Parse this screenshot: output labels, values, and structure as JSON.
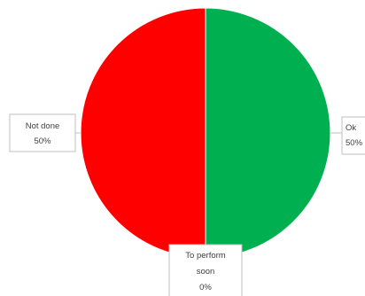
{
  "chart_data": {
    "type": "pie",
    "slices": [
      {
        "label_lines": [
          "Ok",
          "50%"
        ],
        "value": 50,
        "percent": "50%",
        "color": "#00b050"
      },
      {
        "label_lines": [
          "To perform",
          "soon",
          "0%"
        ],
        "value": 0,
        "percent": "0%",
        "color": "#ffc000"
      },
      {
        "label_lines": [
          "Not done",
          "50%"
        ],
        "value": 50,
        "percent": "50%",
        "color": "#ff0000"
      }
    ],
    "start_angle": "top",
    "direction": "clockwise",
    "legend": "none"
  }
}
